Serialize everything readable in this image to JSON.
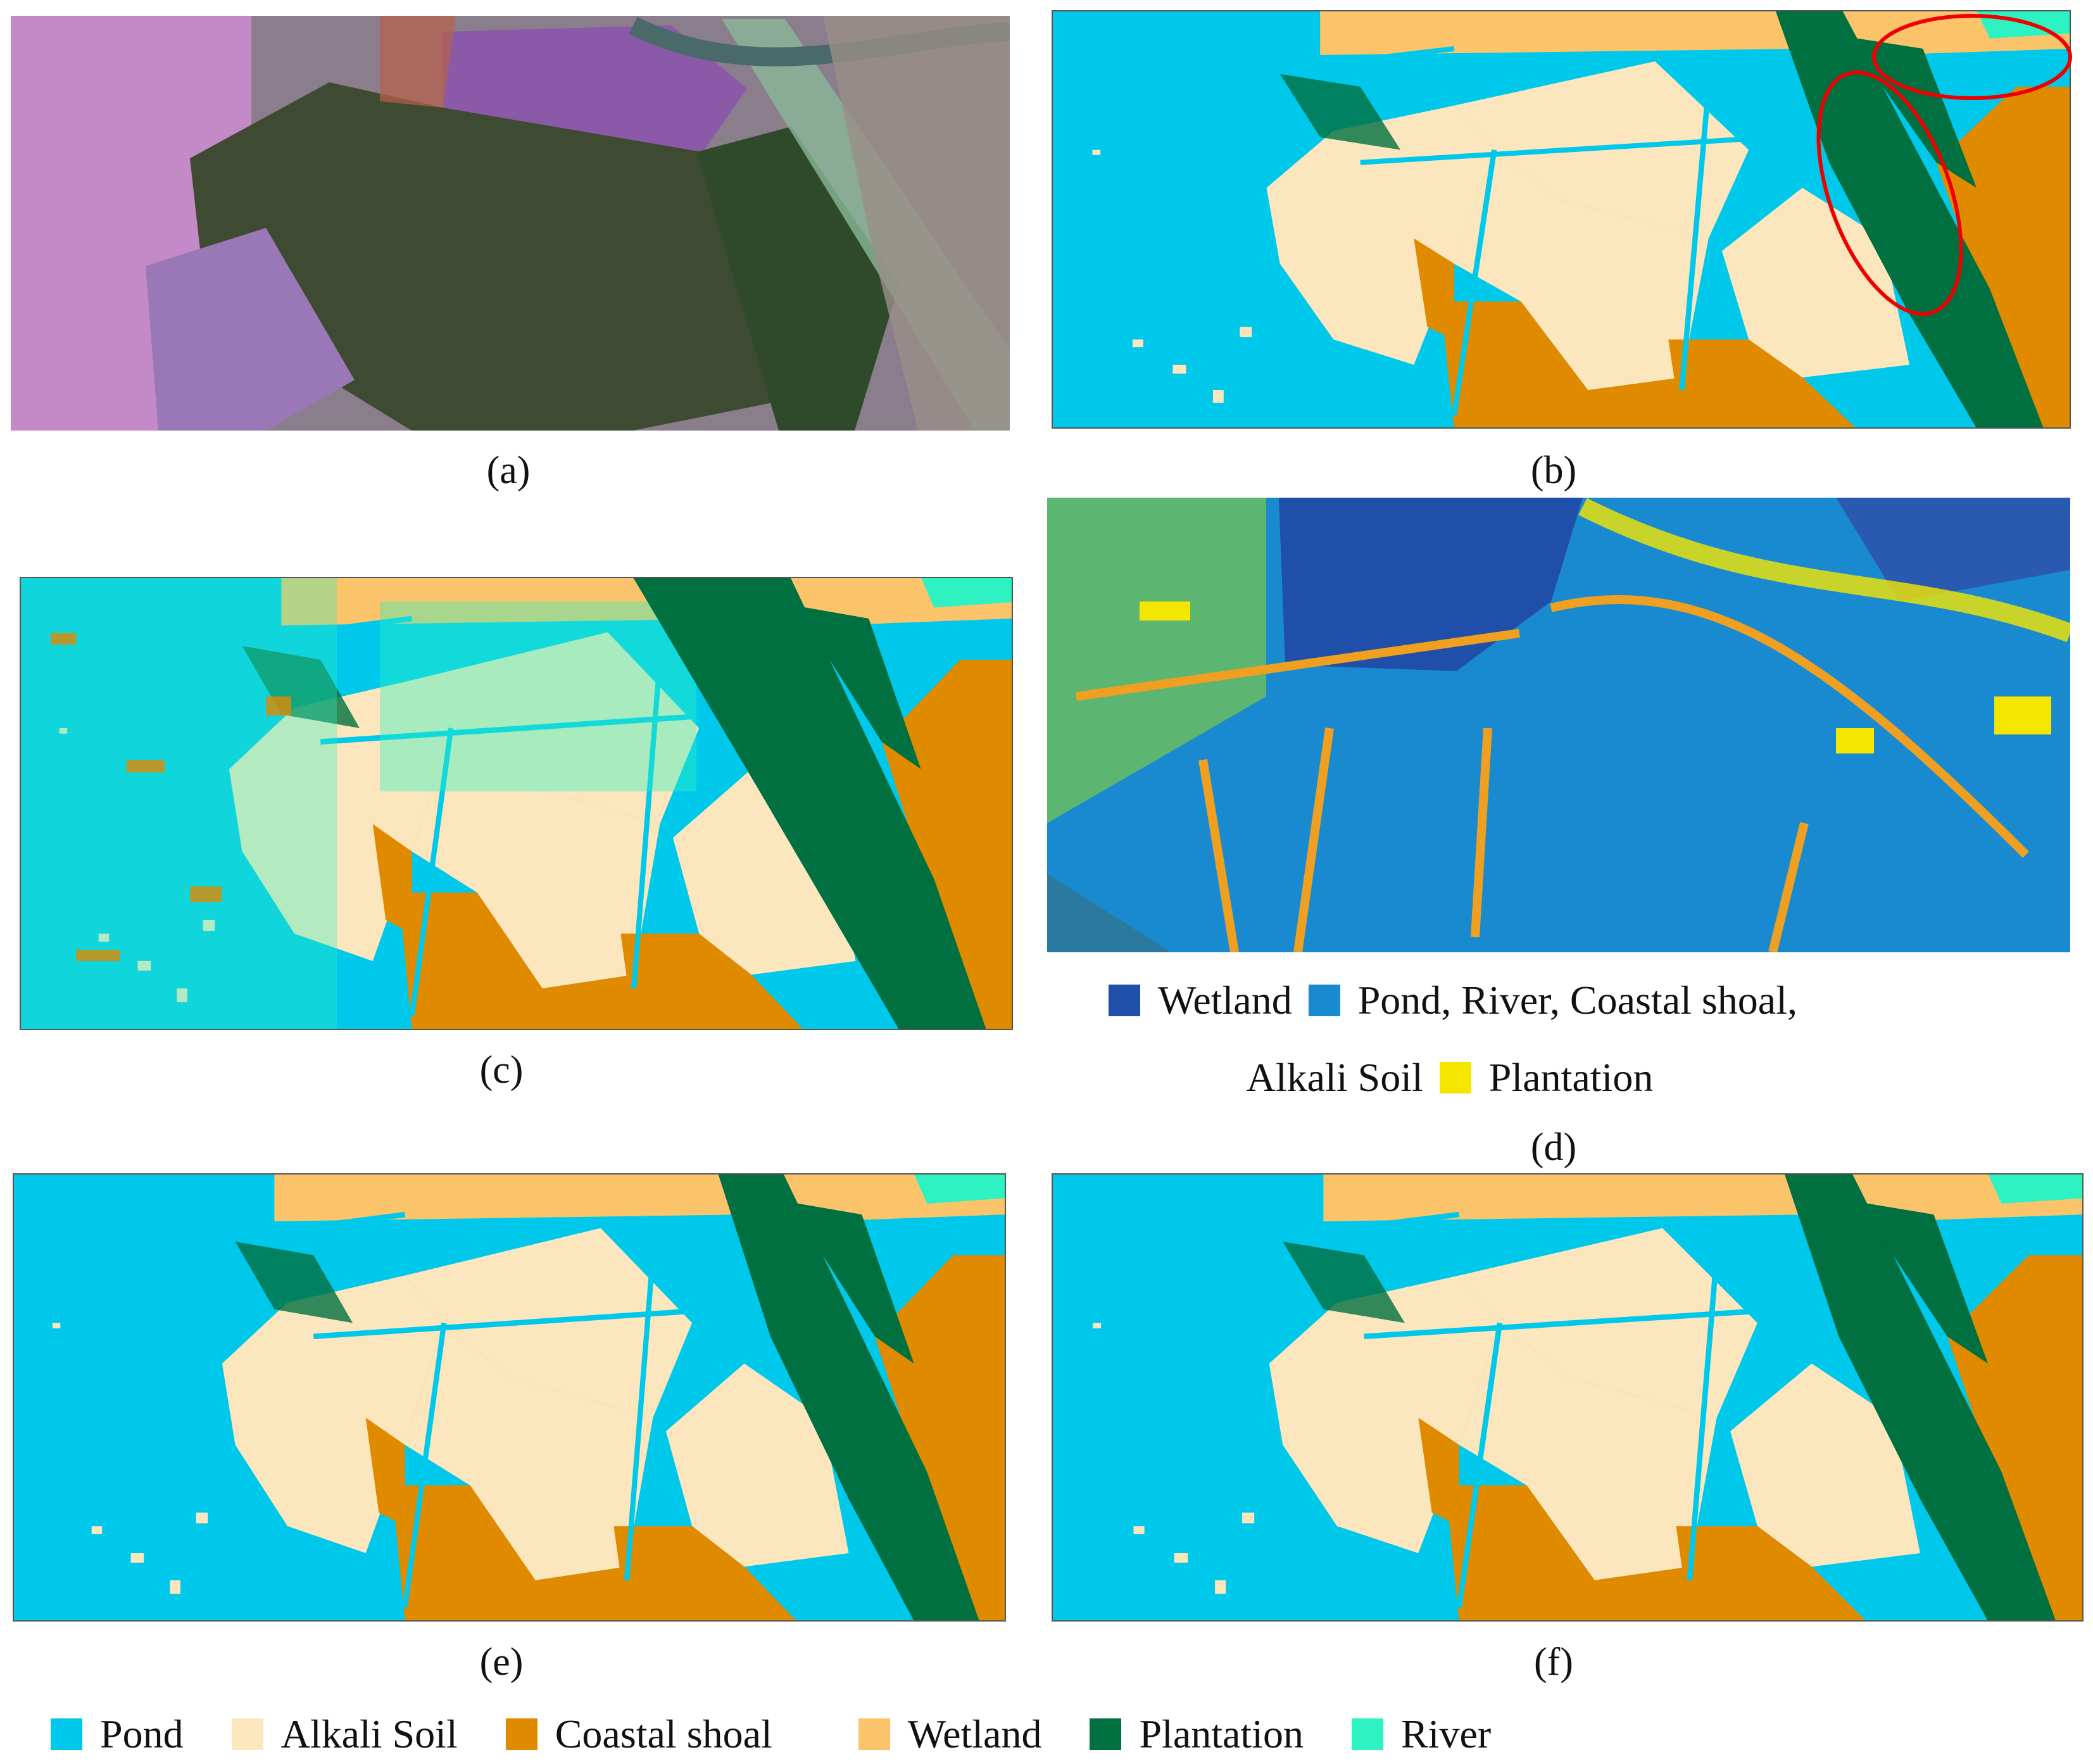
{
  "panels": [
    {
      "label": "(a)"
    },
    {
      "label": "(b)"
    },
    {
      "label": "(c)"
    },
    {
      "label": "(d)",
      "legend": [
        {
          "label": "Wetland",
          "color": "#1f4fa8"
        },
        {
          "label": "Pond, River, Coastal shoal, Alkali Soil",
          "color": "#1a8ad0"
        },
        {
          "label": "Plantation",
          "color": "#f5e600"
        }
      ]
    },
    {
      "label": "(e)"
    },
    {
      "label": "(f)"
    }
  ],
  "legend": [
    {
      "label": "Pond",
      "color": "#00c8ea"
    },
    {
      "label": "Alkali Soil",
      "color": "#fbe6bd"
    },
    {
      "label": "Coastal shoal",
      "color": "#e08a00"
    },
    {
      "label": "Wetland",
      "color": "#fcc46a"
    },
    {
      "label": "Plantation",
      "color": "#007040"
    },
    {
      "label": "River",
      "color": "#2ef2c2"
    }
  ]
}
